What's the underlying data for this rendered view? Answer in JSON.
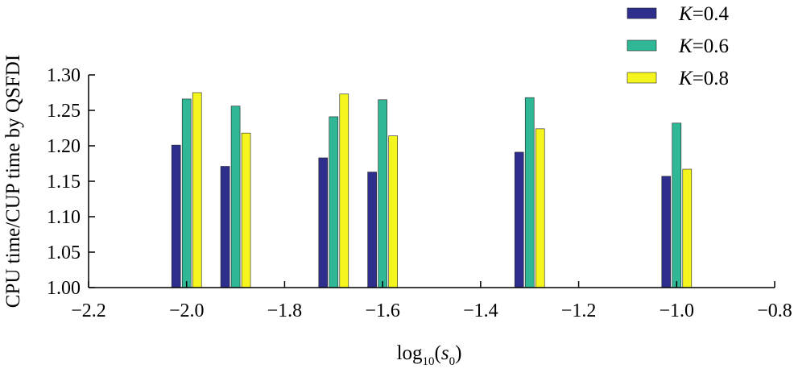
{
  "chart_data": {
    "type": "bar",
    "x": [
      -2.0,
      -1.9,
      -1.7,
      -1.6,
      -1.3,
      -1.0
    ],
    "series": [
      {
        "name": "K=0.4",
        "label_italic": "K",
        "label_rest": "=0.4",
        "color": "#2e2e8c",
        "values": [
          1.201,
          1.171,
          1.183,
          1.163,
          1.191,
          1.157
        ]
      },
      {
        "name": "K=0.6",
        "label_italic": "K",
        "label_rest": "=0.6",
        "color": "#2fb796",
        "values": [
          1.266,
          1.256,
          1.241,
          1.265,
          1.268,
          1.232
        ]
      },
      {
        "name": "K=0.8",
        "label_italic": "K",
        "label_rest": "=0.8",
        "color": "#f5f51e",
        "values": [
          1.275,
          1.218,
          1.273,
          1.214,
          1.224,
          1.167
        ]
      }
    ],
    "xlim": [
      -2.2,
      -0.8
    ],
    "ylim": [
      1.0,
      1.3
    ],
    "xticks": [
      "−2.2",
      "−2.0",
      "−1.8",
      "−1.6",
      "−1.4",
      "−1.2",
      "−1.0",
      "−0.8"
    ],
    "xtick_values": [
      -2.2,
      -2.0,
      -1.8,
      -1.6,
      -1.4,
      -1.2,
      -1.0,
      -0.8
    ],
    "yticks": [
      "1.00",
      "1.05",
      "1.10",
      "1.15",
      "1.20",
      "1.25",
      "1.30"
    ],
    "ytick_values": [
      1.0,
      1.05,
      1.1,
      1.15,
      1.2,
      1.25,
      1.3
    ],
    "ylabel": "CPU time/CUP time by QSFDI",
    "xlabel_main": "log",
    "xlabel_sub": "10",
    "xlabel_open": "(",
    "xlabel_var": "s",
    "xlabel_var_sub": "0",
    "xlabel_close": ")",
    "legend_position": "top-right",
    "grid": false
  }
}
